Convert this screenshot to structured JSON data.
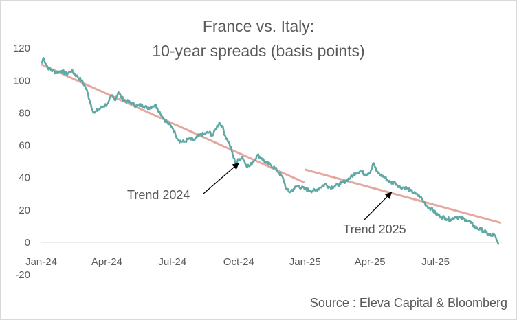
{
  "chart_data": {
    "type": "line",
    "title": "France vs. Italy:",
    "subtitle": "10-year spreads (basis points)",
    "source": "Source : Eleva Capital & Bloomberg",
    "ylim": [
      -20,
      120
    ],
    "yticks": [
      -20,
      0,
      20,
      40,
      60,
      80,
      100,
      120
    ],
    "xlim": [
      "2024-01-01",
      "2025-10-01"
    ],
    "xticks": [
      {
        "date": "2024-01-01",
        "label": "Jan-24"
      },
      {
        "date": "2024-04-01",
        "label": "Apr-24"
      },
      {
        "date": "2024-07-01",
        "label": "Jul-24"
      },
      {
        "date": "2024-10-01",
        "label": "Oct-24"
      },
      {
        "date": "2025-01-01",
        "label": "Jan-25"
      },
      {
        "date": "2025-04-01",
        "label": "Apr-25"
      },
      {
        "date": "2025-07-01",
        "label": "Jul-25"
      }
    ],
    "grid": false,
    "legend": "none",
    "colors": {
      "spread": "#5fa8a3",
      "trend": "#e4a8a0",
      "text": "#595959"
    },
    "series": [
      {
        "points": [
          [
            "2024-01-02",
            111
          ],
          [
            "2024-01-04",
            114
          ],
          [
            "2024-01-08",
            110
          ],
          [
            "2024-01-12",
            107
          ],
          [
            "2024-01-17",
            106
          ],
          [
            "2024-01-22",
            105
          ],
          [
            "2024-01-29",
            106
          ],
          [
            "2024-02-05",
            104
          ],
          [
            "2024-02-12",
            106
          ],
          [
            "2024-02-19",
            103
          ],
          [
            "2024-02-26",
            100
          ],
          [
            "2024-03-01",
            97
          ],
          [
            "2024-03-05",
            93
          ],
          [
            "2024-03-08",
            88
          ],
          [
            "2024-03-12",
            82
          ],
          [
            "2024-03-15",
            80
          ],
          [
            "2024-03-20",
            82
          ],
          [
            "2024-03-27",
            84
          ],
          [
            "2024-04-03",
            86
          ],
          [
            "2024-04-08",
            91
          ],
          [
            "2024-04-12",
            88
          ],
          [
            "2024-04-17",
            93
          ],
          [
            "2024-04-22",
            89
          ],
          [
            "2024-04-29",
            87
          ],
          [
            "2024-05-06",
            86
          ],
          [
            "2024-05-13",
            84
          ],
          [
            "2024-05-20",
            85
          ],
          [
            "2024-05-27",
            83
          ],
          [
            "2024-06-03",
            84
          ],
          [
            "2024-06-07",
            85
          ],
          [
            "2024-06-10",
            83
          ],
          [
            "2024-06-14",
            80
          ],
          [
            "2024-06-20",
            76
          ],
          [
            "2024-06-26",
            73
          ],
          [
            "2024-07-01",
            71
          ],
          [
            "2024-07-05",
            67
          ],
          [
            "2024-07-10",
            63
          ],
          [
            "2024-07-17",
            62
          ],
          [
            "2024-07-24",
            64
          ],
          [
            "2024-07-31",
            63
          ],
          [
            "2024-08-07",
            66
          ],
          [
            "2024-08-14",
            67
          ],
          [
            "2024-08-21",
            68
          ],
          [
            "2024-08-26",
            66
          ],
          [
            "2024-08-30",
            70
          ],
          [
            "2024-09-04",
            74
          ],
          [
            "2024-09-08",
            72
          ],
          [
            "2024-09-12",
            66
          ],
          [
            "2024-09-17",
            62
          ],
          [
            "2024-09-21",
            57
          ],
          [
            "2024-09-24",
            52
          ],
          [
            "2024-09-27",
            49
          ],
          [
            "2024-10-01",
            51
          ],
          [
            "2024-10-06",
            53
          ],
          [
            "2024-10-11",
            48
          ],
          [
            "2024-10-16",
            47
          ],
          [
            "2024-10-21",
            50
          ],
          [
            "2024-10-27",
            54
          ],
          [
            "2024-11-02",
            52
          ],
          [
            "2024-11-08",
            49
          ],
          [
            "2024-11-14",
            48
          ],
          [
            "2024-11-20",
            46
          ],
          [
            "2024-11-26",
            43
          ],
          [
            "2024-12-02",
            39
          ],
          [
            "2024-12-06",
            33
          ],
          [
            "2024-12-10",
            31
          ],
          [
            "2024-12-16",
            33
          ],
          [
            "2024-12-22",
            35
          ],
          [
            "2024-12-31",
            33
          ],
          [
            "2025-01-08",
            32
          ],
          [
            "2025-01-15",
            32
          ],
          [
            "2025-01-22",
            34
          ],
          [
            "2025-01-29",
            36
          ],
          [
            "2025-02-05",
            34
          ],
          [
            "2025-02-12",
            35
          ],
          [
            "2025-02-19",
            36
          ],
          [
            "2025-02-26",
            38
          ],
          [
            "2025-03-05",
            40
          ],
          [
            "2025-03-12",
            43
          ],
          [
            "2025-03-19",
            44
          ],
          [
            "2025-03-26",
            42
          ],
          [
            "2025-04-02",
            44
          ],
          [
            "2025-04-06",
            49
          ],
          [
            "2025-04-10",
            44
          ],
          [
            "2025-04-15",
            42
          ],
          [
            "2025-04-22",
            40
          ],
          [
            "2025-04-29",
            37
          ],
          [
            "2025-05-06",
            37
          ],
          [
            "2025-05-13",
            34
          ],
          [
            "2025-05-20",
            34
          ],
          [
            "2025-05-27",
            32
          ],
          [
            "2025-06-03",
            30
          ],
          [
            "2025-06-10",
            28
          ],
          [
            "2025-06-15",
            25
          ],
          [
            "2025-06-20",
            22
          ],
          [
            "2025-06-25",
            21
          ],
          [
            "2025-07-01",
            18
          ],
          [
            "2025-07-08",
            16
          ],
          [
            "2025-07-15",
            15
          ],
          [
            "2025-07-22",
            14
          ],
          [
            "2025-07-29",
            16
          ],
          [
            "2025-08-05",
            15
          ],
          [
            "2025-08-12",
            14
          ],
          [
            "2025-08-19",
            12
          ],
          [
            "2025-08-26",
            9
          ],
          [
            "2025-09-02",
            8
          ],
          [
            "2025-09-09",
            6
          ],
          [
            "2025-09-16",
            4
          ],
          [
            "2025-09-20",
            5
          ],
          [
            "2025-09-24",
            1
          ],
          [
            "2025-09-26",
            -1
          ]
        ]
      }
    ],
    "trendlines": [
      {
        "label": "Trend 2024",
        "start": [
          "2024-01-01",
          110
        ],
        "end": [
          "2024-12-31",
          37
        ]
      },
      {
        "label": "Trend 2025",
        "start": [
          "2025-01-01",
          45
        ],
        "end": [
          "2025-09-30",
          12
        ]
      }
    ],
    "annotations": [
      {
        "text": "Trend 2024",
        "anchor": "left",
        "arrow_to": [
          "2024-10-01",
          49
        ]
      },
      {
        "text": "Trend 2025",
        "anchor": "center",
        "arrow_to": [
          "2025-05-01",
          31
        ]
      }
    ]
  }
}
